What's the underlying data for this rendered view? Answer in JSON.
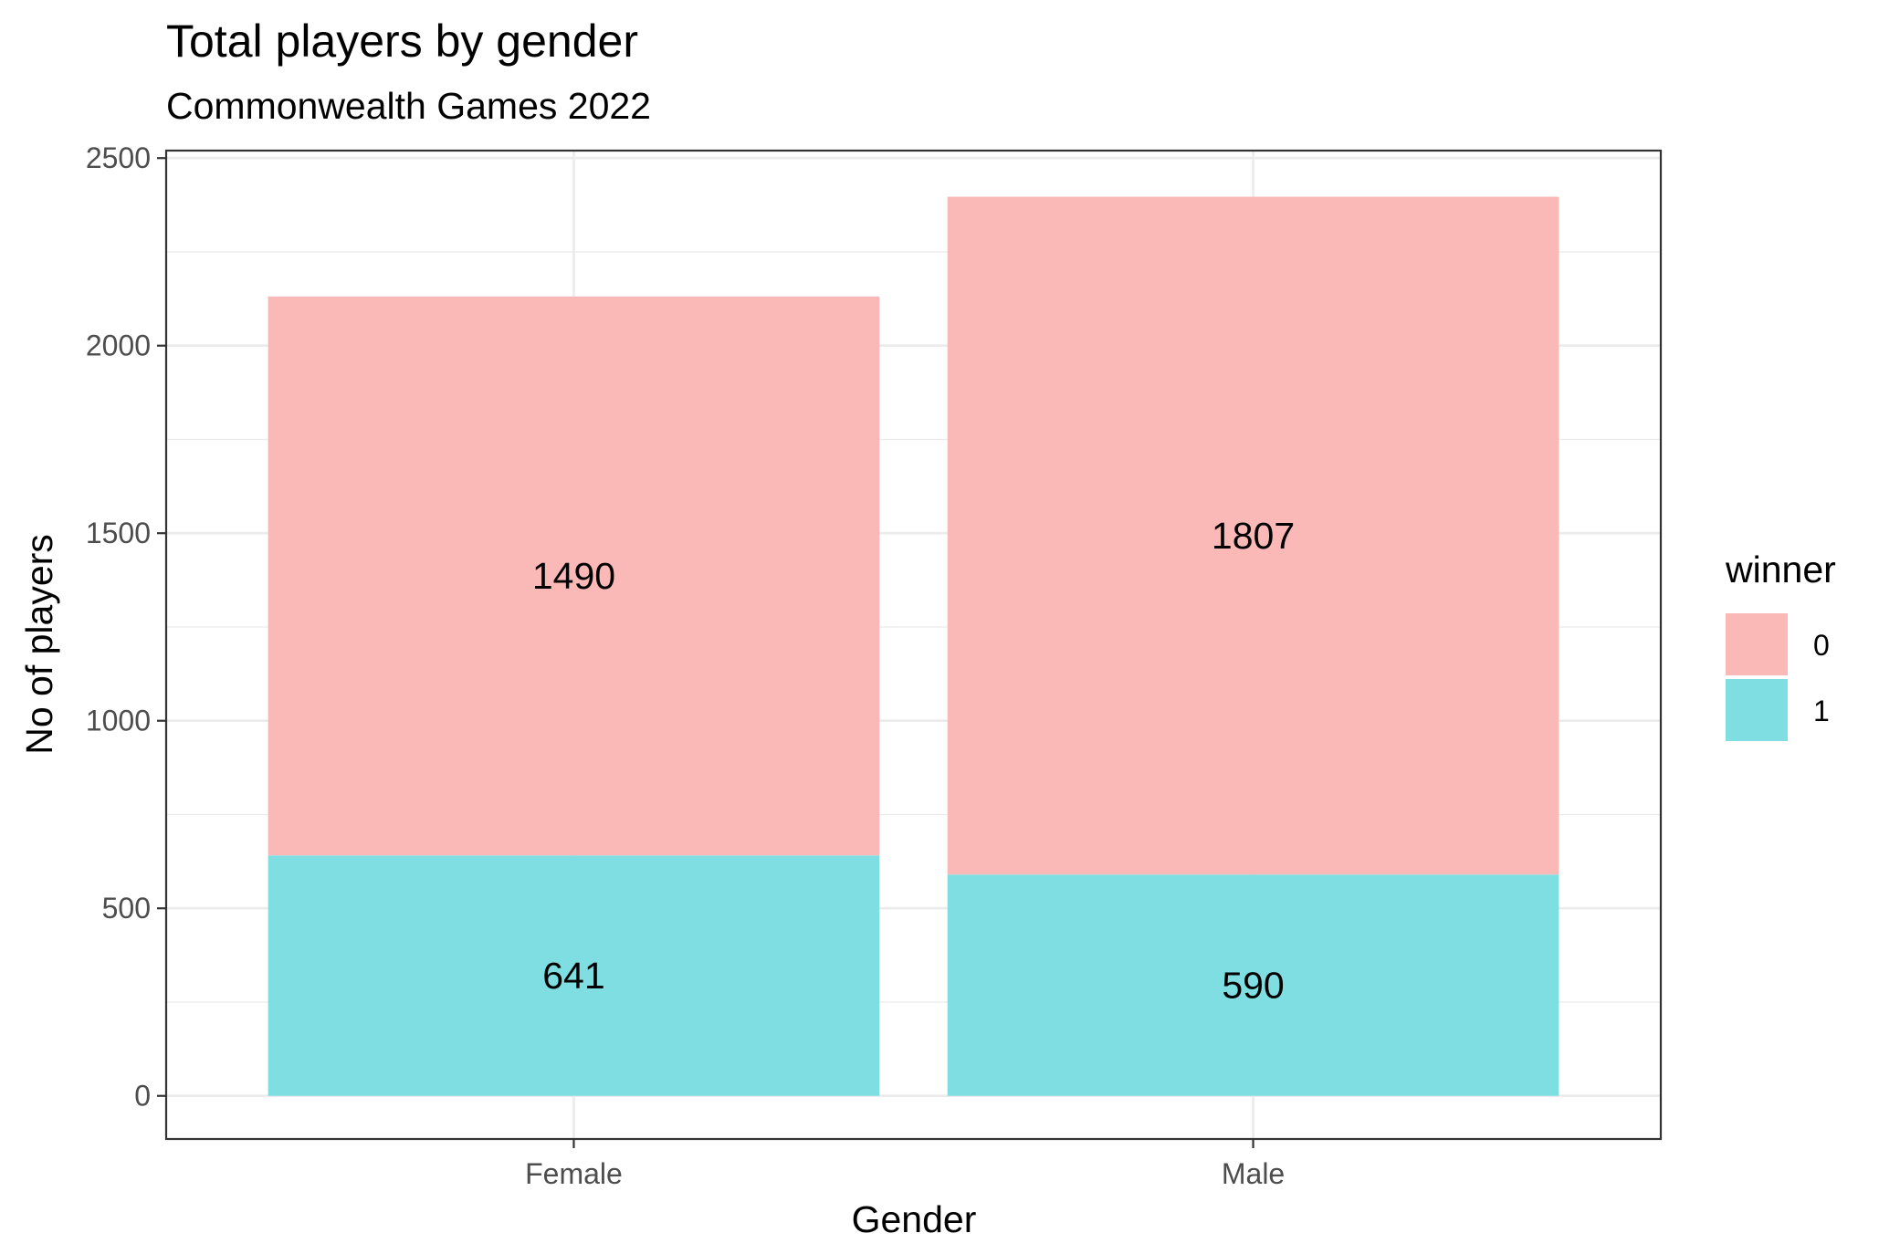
{
  "chart_data": {
    "type": "bar",
    "stacked": true,
    "title": "Total players by gender",
    "subtitle": "Commonwealth Games 2022",
    "xlabel": "Gender",
    "ylabel": "No of players",
    "categories": [
      "Female",
      "Male"
    ],
    "series": [
      {
        "name": "1",
        "values": [
          641,
          590
        ],
        "color": "#7fdee2"
      },
      {
        "name": "0",
        "values": [
          1490,
          1807
        ],
        "color": "#fab8b6"
      }
    ],
    "ylim": [
      -115,
      2520
    ],
    "yticks": [
      0,
      500,
      1000,
      1500,
      2000,
      2500
    ],
    "grid": true,
    "legend": {
      "title": "winner",
      "position": "right",
      "entries": [
        "0",
        "1"
      ]
    }
  }
}
